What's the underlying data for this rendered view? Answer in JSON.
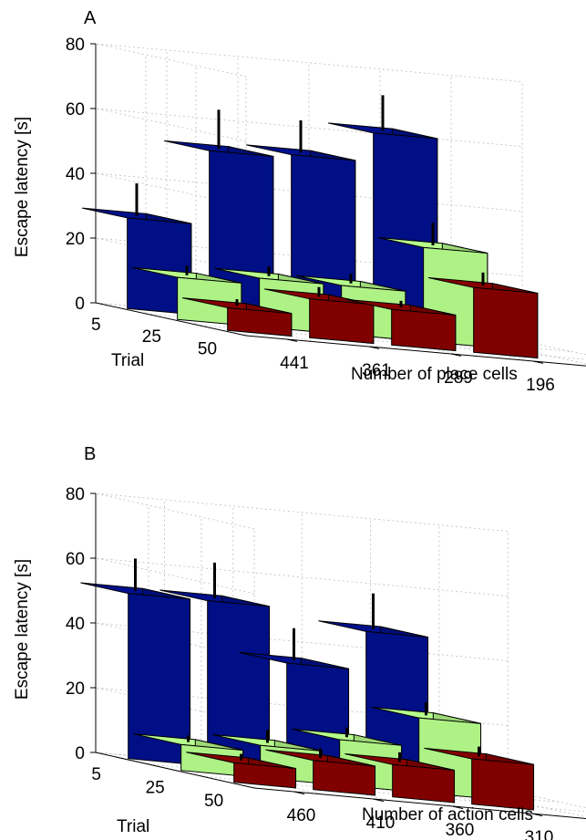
{
  "chart_data": [
    {
      "type": "bar3d",
      "panel_label": "A",
      "ylabel": "Escape latency [s]",
      "xlabel": "Number of place cells",
      "trial_label": "Trial",
      "zlim": [
        0,
        80
      ],
      "zticks": [
        "0",
        "20",
        "40",
        "60",
        "80"
      ],
      "trials": [
        "5",
        "25",
        "50"
      ],
      "categories": [
        "441",
        "361",
        "289",
        "196"
      ],
      "series": [
        {
          "trial": "5",
          "color": "#00108c",
          "values": [
            28,
            51,
            52,
            61
          ],
          "errors": [
            10,
            12,
            10,
            11
          ]
        },
        {
          "trial": "25",
          "color": "#b7ff8c",
          "values": [
            13,
            15,
            15,
            29
          ],
          "errors": [
            3,
            3,
            3,
            7
          ]
        },
        {
          "trial": "50",
          "color": "#870000",
          "values": [
            7,
            12,
            11,
            20
          ],
          "errors": [
            2,
            3,
            2,
            4
          ]
        }
      ],
      "grid": true
    },
    {
      "type": "bar3d",
      "panel_label": "B",
      "ylabel": "Escape latency [s]",
      "xlabel": "Number of action cells",
      "trial_label": "Trial",
      "zlim": [
        0,
        80
      ],
      "zticks": [
        "0",
        "20",
        "40",
        "60",
        "80"
      ],
      "trials": [
        "5",
        "25",
        "50"
      ],
      "categories": [
        "460",
        "410",
        "360",
        "310"
      ],
      "series": [
        {
          "trial": "5",
          "color": "#00108c",
          "values": [
            51,
            51,
            34,
            46
          ],
          "errors": [
            10,
            11,
            10,
            11
          ]
        },
        {
          "trial": "25",
          "color": "#b7ff8c",
          "values": [
            8,
            10,
            14,
            23
          ],
          "errors": [
            2,
            4,
            3,
            4
          ]
        },
        {
          "trial": "50",
          "color": "#870000",
          "values": [
            6,
            9,
            10,
            14
          ],
          "errors": [
            2,
            3,
            3,
            3
          ]
        }
      ],
      "grid": true
    }
  ]
}
